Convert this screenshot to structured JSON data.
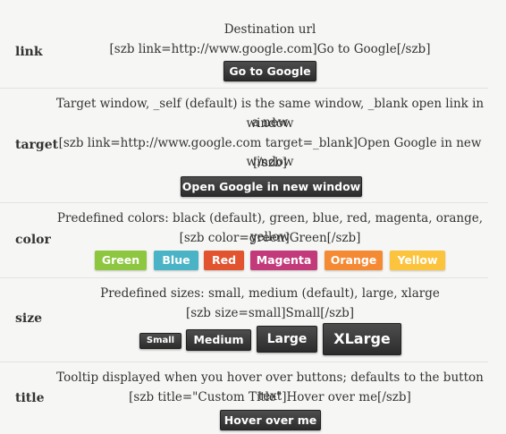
{
  "rows": {
    "link": {
      "label": "link",
      "line1": "Destination url",
      "line2": "[szb link=http://www.google.com]Go to Google[/szb]",
      "button": "Go to Google"
    },
    "target": {
      "label": "target",
      "line1": "Target window, _self (default) is the same window, _blank open link in a new",
      "line2": "window",
      "line3": "[szb link=http://www.google.com target=_blank]Open Google in new window",
      "line4": "[/szb]",
      "button": "Open Google in new window"
    },
    "color": {
      "label": "color",
      "line1": "Predefined colors: black (default), green, blue, red, magenta, orange, yellow",
      "line2": "[szb color=green]Green[/szb]",
      "buttons": [
        {
          "label": "Green",
          "color": "#8dc63f"
        },
        {
          "label": "Blue",
          "color": "#4ab3c6"
        },
        {
          "label": "Red",
          "color": "#e2532f"
        },
        {
          "label": "Magenta",
          "color": "#c23a7a"
        },
        {
          "label": "Orange",
          "color": "#f58a35"
        },
        {
          "label": "Yellow",
          "color": "#fcc33c"
        }
      ]
    },
    "size": {
      "label": "size",
      "line1": "Predefined sizes: small, medium (default), large, xlarge",
      "line2": "[szb size=small]Small[/szb]",
      "buttons": [
        "Small",
        "Medium",
        "Large",
        "XLarge"
      ]
    },
    "title": {
      "label": "title",
      "line1": "Tooltip displayed when you hover over buttons; defaults to the button text",
      "line2": "[szb title=\"Custom Title\"]Hover over me[/szb]",
      "button": "Hover over me"
    }
  }
}
